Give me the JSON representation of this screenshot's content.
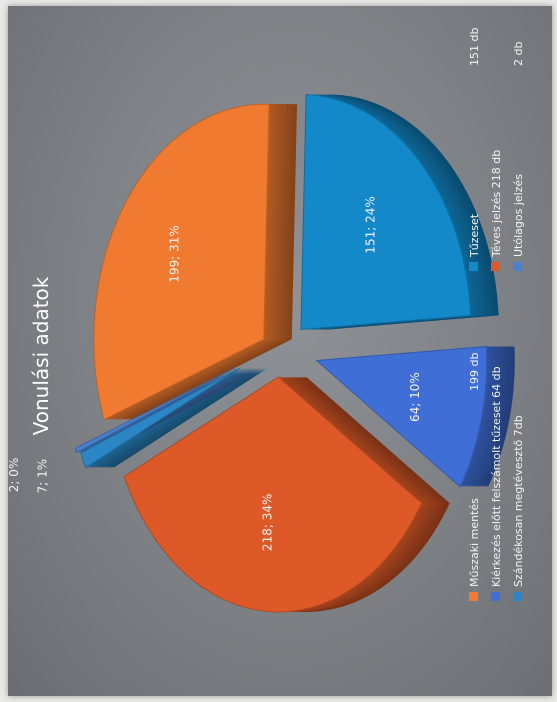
{
  "chart_data": {
    "type": "pie",
    "title": "Vonulási adatok",
    "slices": [
      {
        "value": 199,
        "percent": 31,
        "label": "199; 31%",
        "color": "#f07a30"
      },
      {
        "value": 151,
        "percent": 24,
        "label": "151; 24%",
        "color": "#1389c9"
      },
      {
        "value": 64,
        "percent": 10,
        "label": "64; 10%",
        "color": "#3f6fd6"
      },
      {
        "value": 218,
        "percent": 34,
        "label": "218; 34%",
        "color": "#dd5a28"
      },
      {
        "value": 7,
        "percent": 1,
        "label": "7; 1%",
        "color": "#2a86c4"
      },
      {
        "value": 2,
        "percent": 0,
        "label": "2; 0%",
        "color": "#4a7fd0"
      }
    ],
    "legend": [
      {
        "name": "Műszaki mentés",
        "count": "199 db",
        "color": "#f07a30"
      },
      {
        "name": "Tűzeset",
        "count": "151 db",
        "color": "#1389c9"
      },
      {
        "name": "Kiérkezés előtt felszámolt tűzeset 64 db",
        "count": "",
        "color": "#3f6fd6"
      },
      {
        "name": "Téves jelzés  218 db",
        "count": "",
        "color": "#dd5a28"
      },
      {
        "name": "Szándékosan megtévesztő  7db",
        "count": "",
        "color": "#2a86c4"
      },
      {
        "name": "Utólagos jelzés",
        "count": "2 db",
        "color": "#4a7fd0"
      }
    ],
    "legend_position": "bottom"
  }
}
